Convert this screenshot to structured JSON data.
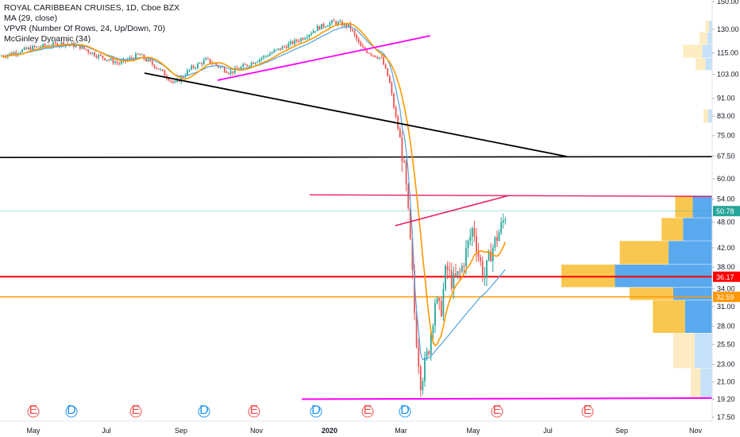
{
  "legend": {
    "title": "ROYAL CARIBBEAN CRUISES, 1D, Cboe BZX",
    "ma": "MA (29, close)",
    "vpvr": "VPVR (Number Of Rows, 24, Up/Down, 70)",
    "mcginley": "McGinley Dynamic (34)"
  },
  "colors": {
    "up": "#26a69a",
    "down": "#ef5350",
    "ma": "#ff9800",
    "mcginley": "#4da3e0",
    "vp_up": "#5aa9ef",
    "vp_down": "#f9c74f",
    "magenta": "#ff00ff",
    "red_line": "#ff0000",
    "orange_line": "#ff9800",
    "black_line": "#000000",
    "price_line": "#26a69a"
  },
  "chart_data": {
    "type": "candlestick",
    "title": "ROYAL CARIBBEAN CRUISES, 1D, Cboe BZX",
    "scale": "log",
    "y_ticks": [
      17.5,
      19.2,
      21.0,
      23.0,
      25.5,
      28.0,
      31.0,
      34.0,
      38.0,
      42.0,
      48.0,
      54.0,
      60.0,
      67.5,
      75.0,
      83.0,
      91.0,
      103.0,
      115.0,
      130.0,
      150.0
    ],
    "ylim": [
      17.0,
      152.0
    ],
    "x_ticks": [
      {
        "label": "May",
        "bold": false
      },
      {
        "label": "Jul",
        "bold": false
      },
      {
        "label": "Sep",
        "bold": false
      },
      {
        "label": "Nov",
        "bold": false
      },
      {
        "label": "2020",
        "bold": true
      },
      {
        "label": "Mar",
        "bold": false
      },
      {
        "label": "May",
        "bold": false
      },
      {
        "label": "Jul",
        "bold": false
      },
      {
        "label": "Sep",
        "bold": false
      },
      {
        "label": "Nov",
        "bold": false
      }
    ],
    "events": [
      "E",
      "D",
      "E",
      "D",
      "E",
      "D",
      "E",
      "D",
      "E",
      "E"
    ],
    "price_labels": [
      {
        "value": 50.78,
        "text": "50.78",
        "color": "#26a69a"
      },
      {
        "value": 36.17,
        "text": "36.17",
        "color": "#ff0000"
      },
      {
        "value": 32.59,
        "text": "32.59",
        "color": "#ff9800"
      }
    ],
    "horizontal_levels": [
      67.0,
      36.17,
      32.59,
      19.2,
      55.0
    ],
    "volume_profile": [
      {
        "lo": 17.5,
        "hi": 19.2,
        "up": 0.0,
        "down": 0.0
      },
      {
        "lo": 19.2,
        "hi": 22.5,
        "up": 12,
        "down": 10
      },
      {
        "lo": 22.5,
        "hi": 27.0,
        "up": 18,
        "down": 22
      },
      {
        "lo": 27.0,
        "hi": 32.0,
        "up": 28,
        "down": 33
      },
      {
        "lo": 32.0,
        "hi": 34.2,
        "up": 40,
        "down": 45
      },
      {
        "lo": 34.2,
        "hi": 38.5,
        "up": 100,
        "down": 55
      },
      {
        "lo": 38.5,
        "hi": 43.5,
        "up": 45,
        "down": 50
      },
      {
        "lo": 43.5,
        "hi": 49.0,
        "up": 30,
        "down": 22
      },
      {
        "lo": 49.0,
        "hi": 55.0,
        "up": 20,
        "down": 18
      },
      {
        "lo": 80.0,
        "hi": 86.0,
        "up": 4,
        "down": 5
      },
      {
        "lo": 105.0,
        "hi": 112.0,
        "up": 7,
        "down": 10
      },
      {
        "lo": 112.0,
        "hi": 120.0,
        "up": 10,
        "down": 20
      },
      {
        "lo": 120.0,
        "hi": 128.0,
        "up": 5,
        "down": 8
      },
      {
        "lo": 128.0,
        "hi": 136.0,
        "up": 3,
        "down": 4
      }
    ]
  }
}
